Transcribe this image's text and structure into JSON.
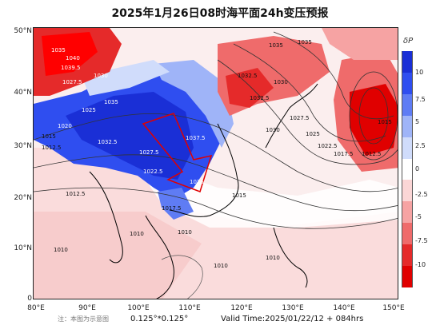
{
  "title": "2025年1月26日08时海平面24h变压预报",
  "latitude_labels": [
    "50°N",
    "40°N",
    "30°N",
    "20°N",
    "10°N",
    "0"
  ],
  "longitude_labels": [
    "80°E",
    "90°E",
    "100°E",
    "110°E",
    "120°E",
    "130°E",
    "140°E",
    "150°E"
  ],
  "isobar_labels": [
    "1035",
    "1035",
    "1040",
    "1039.5",
    "1030",
    "1027.5",
    "1032.5",
    "1025",
    "1035",
    "1015",
    "1012.5",
    "1020",
    "1032.5",
    "1037.5",
    "1027.5",
    "1022.5",
    "1025",
    "1017.5",
    "1012.5",
    "1010",
    "1010",
    "1030",
    "1027.5",
    "1025",
    "1022.5",
    "1017.5",
    "1012.5",
    "1035",
    "1032.5",
    "1030",
    "1015",
    "1015",
    "1010",
    "1010",
    "1010"
  ],
  "colorbar": {
    "title": "δP",
    "tick_labels": [
      "10",
      "7.5",
      "5",
      "2.5",
      "0",
      "-2.5",
      "-5",
      "-7.5",
      "-10"
    ],
    "colors": [
      "#1a2fd6",
      "#2f4ef0",
      "#5f7cf4",
      "#9fb4f8",
      "#d0dcfb",
      "#ffffff",
      "#fbd6d6",
      "#f6a3a3",
      "#ef6b6b",
      "#e52a2a",
      "#e00000"
    ]
  },
  "footer": {
    "note": "注：本图为示意图",
    "resolution": "0.125°*0.125°",
    "valid_time": "Valid Time:2025/01/22/12 + 084hrs"
  }
}
